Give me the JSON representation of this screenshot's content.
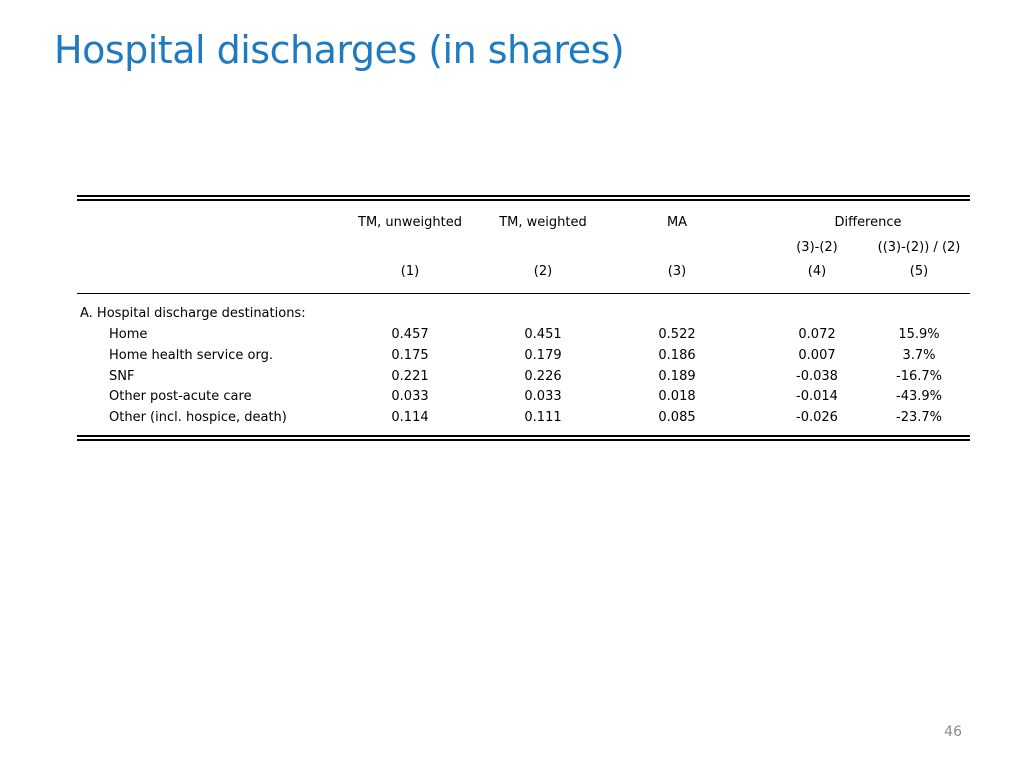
{
  "title": "Hospital discharges (in shares)",
  "page_number": "46",
  "colors": {
    "title": "#1F7BC1",
    "page_number": "#8c8c8c"
  },
  "table": {
    "headers": {
      "col1": "TM, unweighted",
      "col2": "TM, weighted",
      "col3": "MA",
      "difference": "Difference",
      "col4_sub": "(3)-(2)",
      "col5_sub": "((3)-(2)) / (2)",
      "numbers": [
        "(1)",
        "(2)",
        "(3)",
        "(4)",
        "(5)"
      ]
    },
    "section_label": "A. Hospital discharge destinations:",
    "rows": [
      {
        "label": "Home",
        "values": [
          "0.457",
          "0.451",
          "0.522",
          "0.072",
          "15.9%"
        ]
      },
      {
        "label": "Home health service org.",
        "values": [
          "0.175",
          "0.179",
          "0.186",
          "0.007",
          "3.7%"
        ]
      },
      {
        "label": "SNF",
        "values": [
          "0.221",
          "0.226",
          "0.189",
          "-0.038",
          "-16.7%"
        ]
      },
      {
        "label": "Other post-acute care",
        "values": [
          "0.033",
          "0.033",
          "0.018",
          "-0.014",
          "-43.9%"
        ]
      },
      {
        "label": "Other (incl. hospice, death)",
        "values": [
          "0.114",
          "0.111",
          "0.085",
          "-0.026",
          "-23.7%"
        ]
      }
    ]
  }
}
